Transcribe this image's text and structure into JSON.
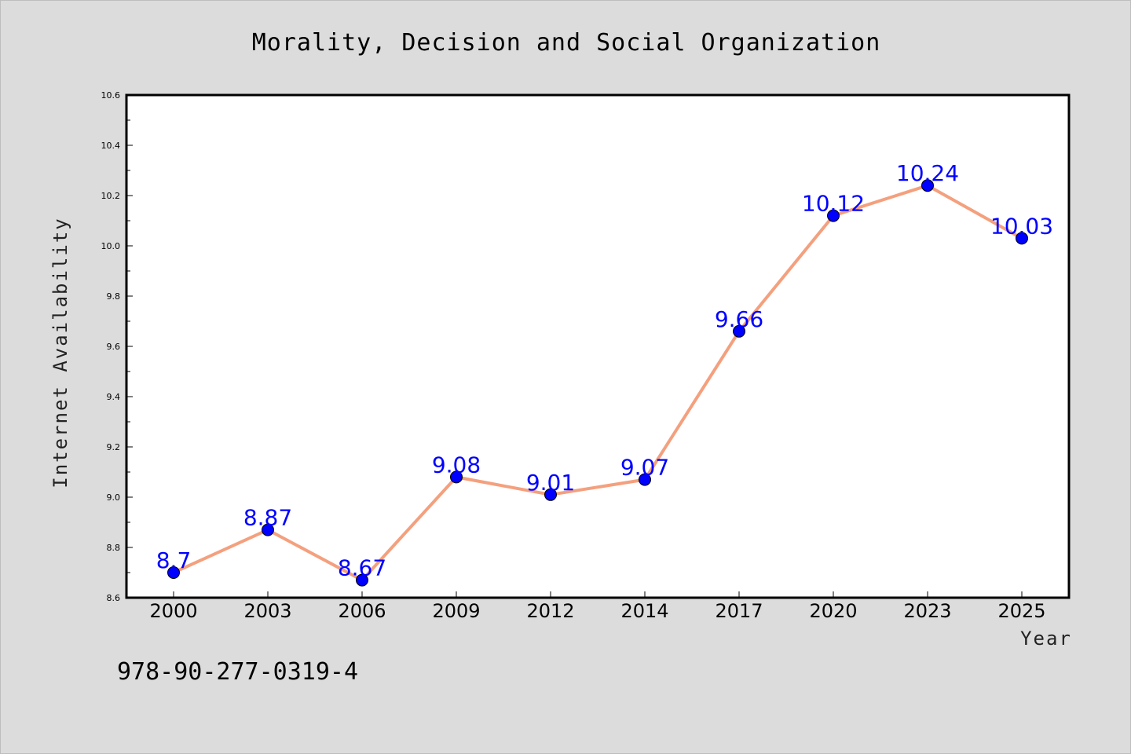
{
  "chart_data": {
    "type": "line",
    "title": "Morality, Decision and Social Organization",
    "xlabel": "Year",
    "ylabel": "Internet Availability",
    "categories": [
      "2000",
      "2003",
      "2006",
      "2009",
      "2012",
      "2014",
      "2017",
      "2020",
      "2023",
      "2025"
    ],
    "series": [
      {
        "values": [
          8.7,
          8.87,
          8.67,
          9.08,
          9.01,
          9.07,
          9.66,
          10.12,
          10.24,
          10.03
        ]
      }
    ],
    "data_labels": [
      "8.7",
      "8.87",
      "8.67",
      "9.08",
      "9.01",
      "9.07",
      "9.66",
      "10.12",
      "10.24",
      "10.03"
    ],
    "ylim": [
      8.6,
      10.6
    ],
    "yticks": [
      "8.6",
      "8.8",
      "9.0",
      "9.2",
      "9.4",
      "9.6",
      "9.8",
      "10.0",
      "10.2",
      "10.4",
      "10.6"
    ],
    "grid": false,
    "legend": "none",
    "colors": {
      "line": "#f4a07e",
      "marker": "#0000ff",
      "label": "#0000ff",
      "background": "#dcdcdc",
      "plot_background": "#ffffff"
    }
  },
  "footer": {
    "code": "978-90-277-0319-4"
  }
}
